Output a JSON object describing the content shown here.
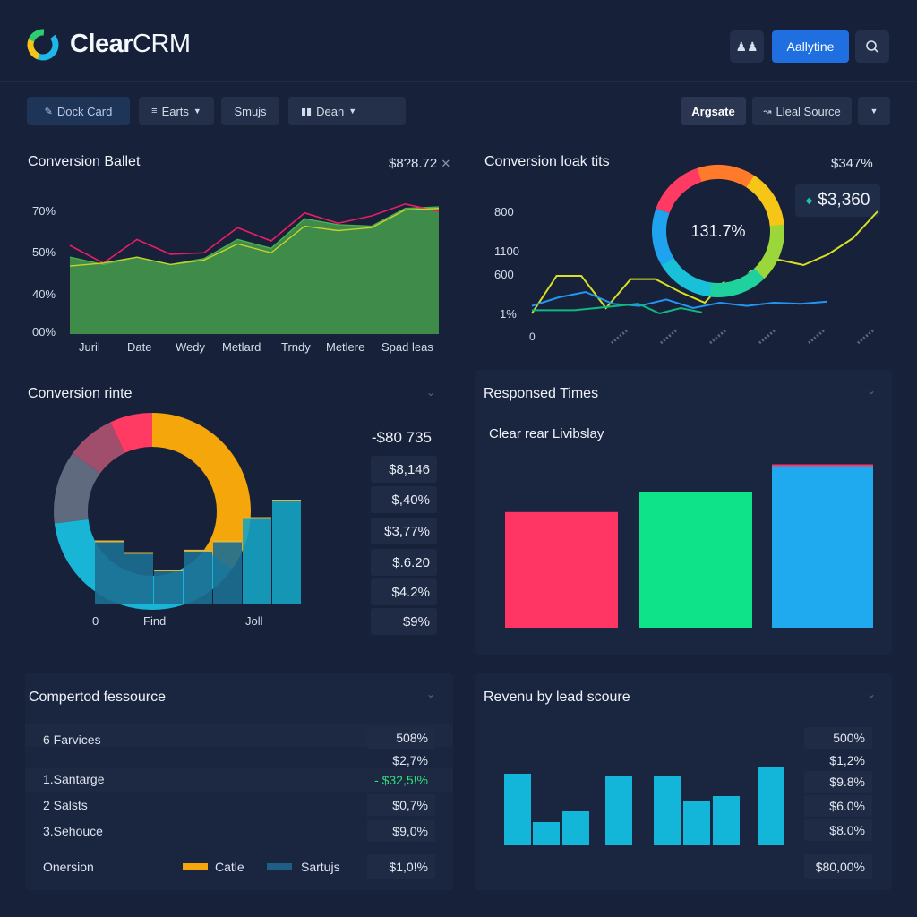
{
  "app": {
    "brand_main": "Clear",
    "brand_sub": "CRM",
    "logo_icon": "c-logo-icon",
    "accent": "#1f6fe0"
  },
  "header": {
    "notify_icon": "users-icon",
    "primary_label": "Aallytine",
    "search_icon": "search-icon"
  },
  "toolbar": {
    "dock_card": "Dock Card",
    "earts": "Earts",
    "smujs": "Smujs",
    "dean": "Dean",
    "argsate": "Argsate",
    "lead_source": "Lleal Source"
  },
  "panel1": {
    "title": "Conversion Ballet",
    "meta": "$8?8.72",
    "close": "✕",
    "chart_data": {
      "type": "area",
      "y_ticks": [
        "70%",
        "50%",
        "40%",
        "00%"
      ],
      "x_labels": [
        "Juril",
        "Date",
        "Wedy",
        "Metlard",
        "Trndy",
        "Metlere",
        "Spad leas"
      ],
      "series": [
        {
          "color": "#4caf50",
          "values": [
            52,
            47,
            52,
            47,
            51,
            64,
            58,
            78,
            74,
            73,
            85,
            86
          ]
        },
        {
          "color": "#e91e63",
          "values": [
            60,
            48,
            64,
            54,
            55,
            72,
            63,
            82,
            75,
            80,
            88,
            83
          ]
        },
        {
          "color": "#c6d22b",
          "values": [
            46,
            48,
            52,
            47,
            50,
            61,
            55,
            73,
            70,
            72,
            84,
            85
          ]
        }
      ],
      "ylim": [
        0,
        100
      ]
    }
  },
  "panel2": {
    "title": "Conversion loak tits",
    "meta": "$347%",
    "callout": "$3,360",
    "donut_value": "131.7%",
    "chart_data": {
      "type": "line",
      "y_ticks": [
        "800",
        "1100",
        "600",
        "1%"
      ],
      "x_labels": [
        "0",
        "",
        "",
        "",
        "",
        "",
        ""
      ],
      "series": [
        {
          "color": "#d7e022",
          "values": [
            5,
            40,
            40,
            10,
            37,
            37,
            25,
            15,
            40,
            45,
            55,
            50,
            60,
            75,
            100
          ]
        },
        {
          "color": "#2196f3",
          "values": [
            12,
            20,
            25,
            14,
            12,
            18,
            10,
            15,
            12,
            15,
            14,
            16
          ]
        },
        {
          "color": "#10b981",
          "values": [
            8,
            8,
            8,
            10,
            12,
            14,
            5,
            10,
            6
          ]
        }
      ]
    }
  },
  "panel3": {
    "title": "Conversion rinte",
    "x_labels": [
      "0",
      "Find",
      "Joll"
    ],
    "values": [
      "-$80 735",
      "$8,146",
      "$,40%",
      "$3,77%",
      "$.6.20",
      "$4.2%",
      "$9%"
    ],
    "chart_data": {
      "type": "bar",
      "bars": [
        55,
        45,
        30,
        47,
        55,
        75,
        90
      ],
      "donut": [
        {
          "color": "#f5a60b",
          "value": 35
        },
        {
          "color": "#19b5d6",
          "value": 38
        },
        {
          "color": "#5f6a7e",
          "value": 12
        },
        {
          "color": "#a14e6d",
          "value": 8
        },
        {
          "color": "#ff3b63",
          "value": 7
        }
      ]
    }
  },
  "panel4": {
    "title": "Responsed Times",
    "subtitle": "Clear rear Livibslay",
    "chart_data": {
      "type": "bar",
      "values": [
        68,
        80,
        96
      ],
      "colors": [
        "#ff3663",
        "#0ee38a",
        "#1fa9ee"
      ],
      "ylim": [
        0,
        100
      ]
    }
  },
  "panel5": {
    "title": "Compertod fessource",
    "rows": [
      {
        "label": "6 Farvices",
        "value": "508%"
      },
      {
        "label": "",
        "value": "$2,7%"
      },
      {
        "label": "1.Santarge",
        "value": "- $32,5!%"
      },
      {
        "label": "2 Salsts",
        "value": "$0,7%"
      },
      {
        "label": "3.Sehouce",
        "value": "$9,0%"
      }
    ],
    "footer_label": "Onersion",
    "legend": [
      {
        "label": "Catle",
        "color": "#f5a60b"
      },
      {
        "label": "Sartujs",
        "color": "#1f5f86"
      }
    ],
    "footer_value": "$1,0!%"
  },
  "panel6": {
    "title": "Revenu by lead scoure",
    "values": [
      "500%",
      "$1,2%",
      "$9.8%",
      "$6.0%",
      "$8.0%",
      "$80,00%"
    ],
    "chart_data": {
      "type": "bar",
      "values": [
        80,
        26,
        38,
        78,
        78,
        50,
        55,
        88
      ],
      "color": "#13b6d8",
      "ylim": [
        0,
        100
      ]
    }
  }
}
